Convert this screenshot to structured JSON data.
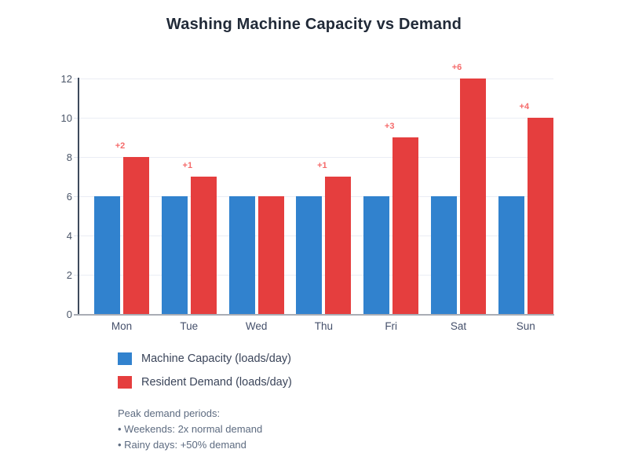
{
  "chart_data": {
    "type": "bar",
    "title": "Washing Machine Capacity vs Demand",
    "categories": [
      "Mon",
      "Tue",
      "Wed",
      "Thu",
      "Fri",
      "Sat",
      "Sun"
    ],
    "series": [
      {
        "name": "Machine Capacity (loads/day)",
        "color": "#3182ce",
        "values": [
          6,
          6,
          6,
          6,
          6,
          6,
          6
        ]
      },
      {
        "name": "Resident Demand (loads/day)",
        "color": "#e53e3e",
        "values": [
          8,
          7,
          6,
          7,
          9,
          12,
          10
        ]
      }
    ],
    "annotations": [
      "+2",
      "+1",
      "",
      "+1",
      "+3",
      "+6",
      "+4"
    ],
    "annotation_color": "#f56b6b",
    "ylabel": "",
    "xlabel": "",
    "ylim": [
      0,
      12
    ],
    "yticks": [
      0,
      2,
      4,
      6,
      8,
      10,
      12
    ],
    "grid": true,
    "legend_position": "bottom-left",
    "notes": [
      "Peak demand periods:",
      "• Weekends: 2x normal demand",
      "• Rainy days: +50% demand"
    ]
  }
}
